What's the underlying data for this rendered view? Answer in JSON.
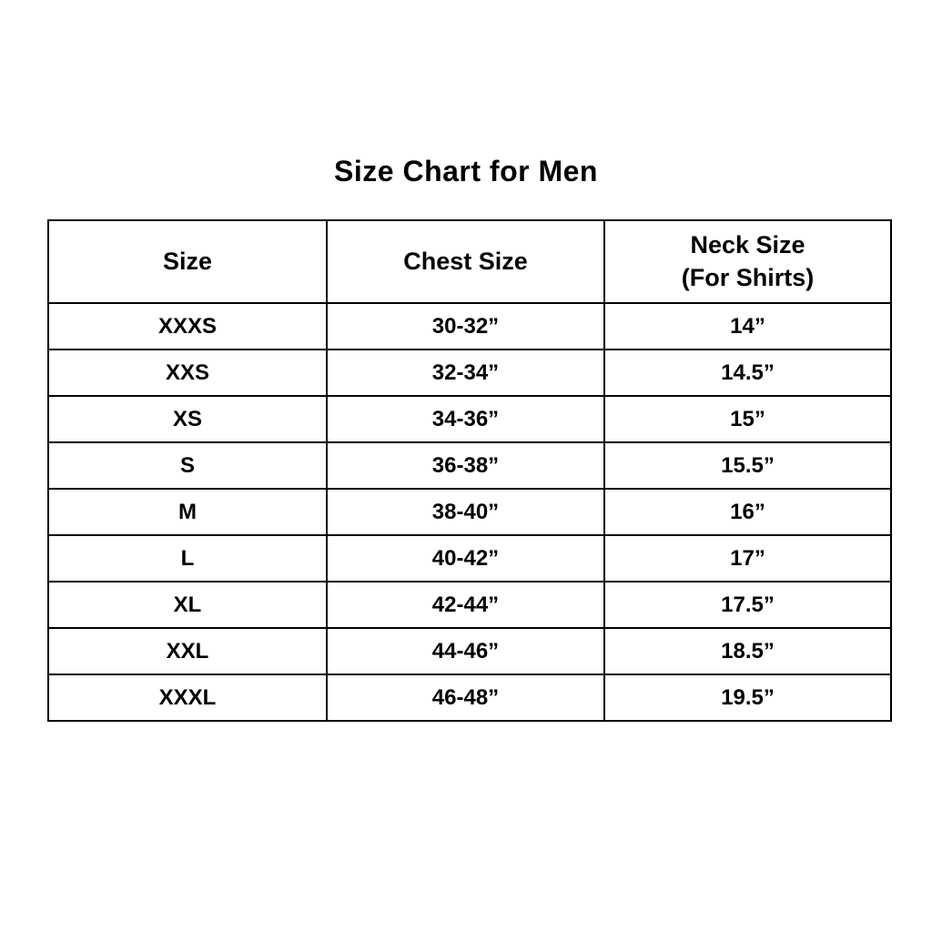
{
  "page": {
    "background_color": "#ffffff",
    "text_color": "#000000",
    "border_color": "#000000"
  },
  "title": "Size Chart for Men",
  "chart_data": {
    "type": "table",
    "title": "Size Chart for Men",
    "columns": [
      "Size",
      "Chest Size",
      "Neck Size (For Shirts)"
    ],
    "header_display": [
      {
        "line1": "Size",
        "line2": ""
      },
      {
        "line1": "Chest Size",
        "line2": ""
      },
      {
        "line1": "Neck Size",
        "line2": "(For Shirts)"
      }
    ],
    "rows": [
      [
        "XXXS",
        "30-32”",
        "14”"
      ],
      [
        "XXS",
        "32-34”",
        "14.5”"
      ],
      [
        "XS",
        "34-36”",
        "15”"
      ],
      [
        "S",
        "36-38”",
        "15.5”"
      ],
      [
        "M",
        "38-40”",
        "16”"
      ],
      [
        "L",
        "40-42”",
        "17”"
      ],
      [
        "XL",
        "42-44”",
        "17.5”"
      ],
      [
        "XXL",
        "44-46”",
        "18.5”"
      ],
      [
        "XXXL",
        "46-48”",
        "19.5”"
      ]
    ]
  }
}
